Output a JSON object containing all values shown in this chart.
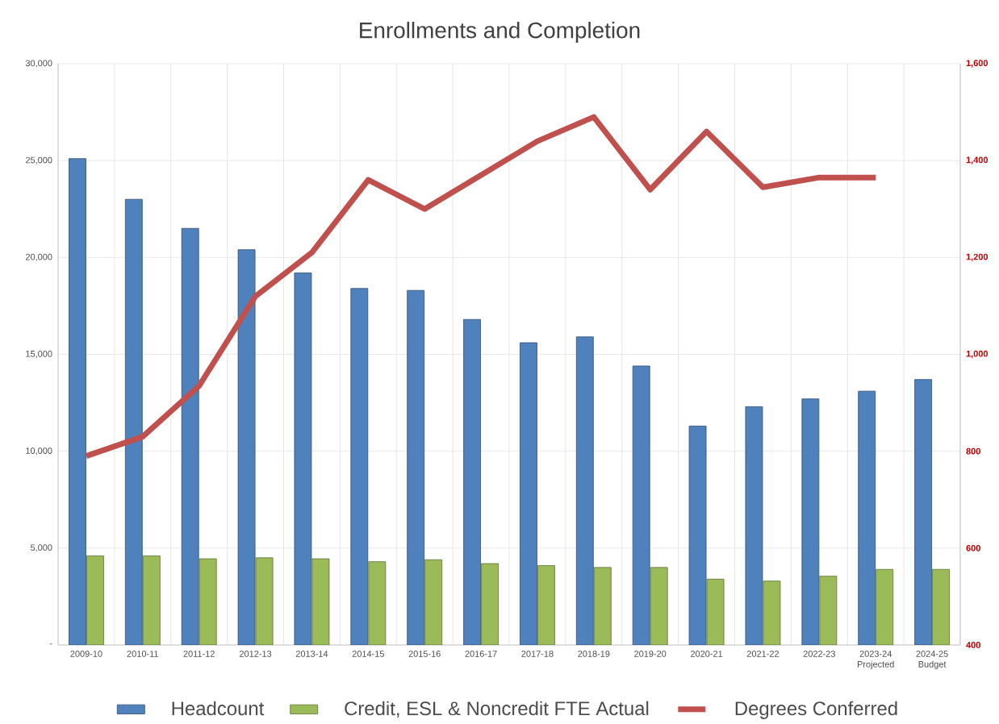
{
  "chart_data": {
    "type": "bar",
    "title": "Enrollments and Completion",
    "categories": [
      "2009-10",
      "2010-11",
      "2011-12",
      "2012-13",
      "2013-14",
      "2014-15",
      "2015-16",
      "2016-17",
      "2017-18",
      "2018-19",
      "2019-20",
      "2020-21",
      "2021-22",
      "2022-23",
      "2023-24 Projected",
      "2024-25 Budget"
    ],
    "series": [
      {
        "name": "Headcount",
        "color": "#4f81bd",
        "values": [
          25100,
          23000,
          21500,
          20400,
          19200,
          18400,
          18300,
          16800,
          15600,
          15900,
          14400,
          11300,
          12300,
          12700,
          13100,
          13700
        ]
      },
      {
        "name": "Credit, ESL & Noncredit FTE Actual",
        "color": "#9bbb59",
        "values": [
          4600,
          4600,
          4450,
          4500,
          4450,
          4300,
          4400,
          4200,
          4100,
          4000,
          4000,
          3400,
          3300,
          3550,
          3900,
          3900
        ]
      },
      {
        "name": "Degrees Conferred",
        "type": "line",
        "axis": "y2",
        "color": "#c0504d",
        "values": [
          790,
          830,
          935,
          1120,
          1210,
          1360,
          1300,
          1370,
          1440,
          1490,
          1340,
          1460,
          1345,
          1365,
          1365,
          null
        ]
      }
    ],
    "ylim": [
      0,
      30000
    ],
    "yticks": [
      {
        "value": 0,
        "label": "-"
      },
      {
        "value": 5000,
        "label": "5,000"
      },
      {
        "value": 10000,
        "label": "10,000"
      },
      {
        "value": 15000,
        "label": "15,000"
      },
      {
        "value": 20000,
        "label": "20,000"
      },
      {
        "value": 25000,
        "label": "25,000"
      },
      {
        "value": 30000,
        "label": "30,000"
      }
    ],
    "y2lim": [
      400,
      1600
    ],
    "y2ticks": [
      400,
      600,
      800,
      {
        "value": 1000,
        "label": "1,000"
      },
      {
        "value": 1200,
        "label": "1,200"
      },
      {
        "value": 1400,
        "label": "1,400"
      },
      {
        "value": 1600,
        "label": "1,600"
      }
    ],
    "grid": true,
    "legend": "bottom",
    "marker": "none"
  }
}
